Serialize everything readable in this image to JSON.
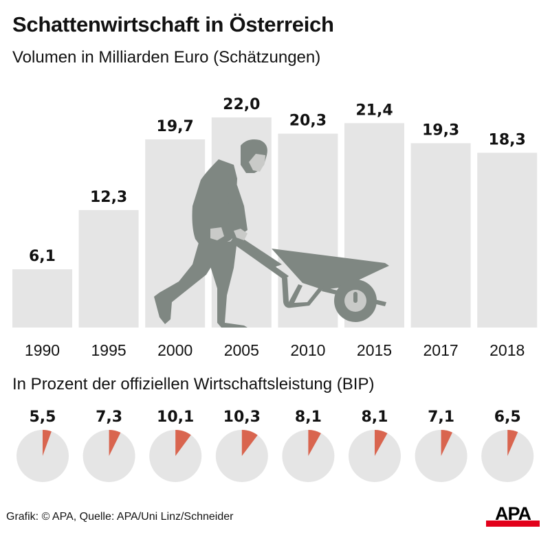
{
  "header": {
    "title": "Schattenwirtschaft in Österreich",
    "subtitle": "Volumen in Milliarden Euro (Schätzungen)",
    "subtitle2": "In Prozent der offiziellen Wirtschaftsleistung (BIP)"
  },
  "footer": {
    "source": "Grafik: © APA, Quelle: APA/Uni Linz/Schneider",
    "logo": "APA"
  },
  "colors": {
    "bar": "#e5e5e5",
    "pie_base": "#e5e5e5",
    "pie_share": "#d9654f",
    "illustration": "#7f8782",
    "illustration_light": "#c9cac8",
    "logo_red": "#e2001a"
  },
  "chart_data": [
    {
      "type": "bar",
      "title": "Schattenwirtschaft in Österreich",
      "subtitle": "Volumen in Milliarden Euro (Schätzungen)",
      "xlabel": "",
      "ylabel": "Milliarden Euro",
      "categories": [
        "1990",
        "1995",
        "2000",
        "2005",
        "2010",
        "2015",
        "2017",
        "2018"
      ],
      "values": [
        6.1,
        12.3,
        19.7,
        22.0,
        20.3,
        21.4,
        19.3,
        18.3
      ],
      "value_labels": [
        "6,1",
        "12,3",
        "19,7",
        "22,0",
        "20,3",
        "21,4",
        "19,3",
        "18,3"
      ],
      "ylim": [
        0,
        22.0
      ],
      "grid": false,
      "legend": "none"
    },
    {
      "type": "pie",
      "title": "In Prozent der offiziellen Wirtschaftsleistung (BIP)",
      "categories": [
        "1990",
        "1995",
        "2000",
        "2005",
        "2010",
        "2015",
        "2017",
        "2018"
      ],
      "values": [
        5.5,
        7.3,
        10.1,
        10.3,
        8.1,
        8.1,
        7.1,
        6.5
      ],
      "value_labels": [
        "5,5",
        "7,3",
        "10,1",
        "10,3",
        "8,1",
        "8,1",
        "7,1",
        "6,5"
      ],
      "unit": "%",
      "legend": "none"
    }
  ]
}
